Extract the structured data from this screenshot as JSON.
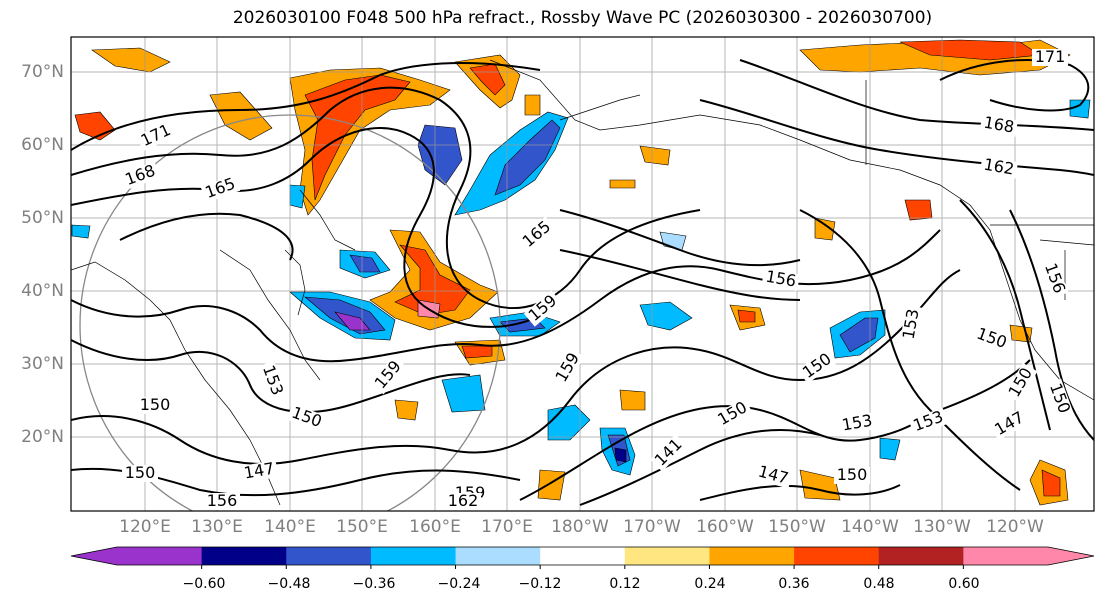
{
  "title": "2026030100 F048 500 hPa refract., Rossby Wave PC (2026030300 - 2026030700)",
  "lat_labels": [
    "70°N",
    "60°N",
    "50°N",
    "40°N",
    "30°N",
    "20°N"
  ],
  "lon_labels": [
    "120°E",
    "130°E",
    "140°E",
    "150°E",
    "160°E",
    "170°E",
    "180°W",
    "170°W",
    "160°W",
    "150°W",
    "140°W",
    "130°W",
    "120°W"
  ],
  "contour_labels": [
    "171",
    "168",
    "165",
    "165",
    "162",
    "168",
    "171",
    "156",
    "159",
    "159",
    "153",
    "150",
    "150",
    "147",
    "150",
    "150",
    "153",
    "153",
    "150",
    "147",
    "150",
    "147",
    "141",
    "150",
    "156",
    "159",
    "162",
    "156",
    "159",
    "153",
    "150",
    "150"
  ],
  "colorbar": {
    "ticks": [
      "−0.60",
      "−0.48",
      "−0.36",
      "−0.24",
      "−0.12",
      "0.12",
      "0.24",
      "0.36",
      "0.48",
      "0.60"
    ],
    "colors": [
      "#9933cc",
      "#000088",
      "#3355cc",
      "#00bbff",
      "#aaddff",
      "#ffffff",
      "#ffe680",
      "#ffa500",
      "#ff4400",
      "#b22222",
      "#ff88aa"
    ]
  }
}
